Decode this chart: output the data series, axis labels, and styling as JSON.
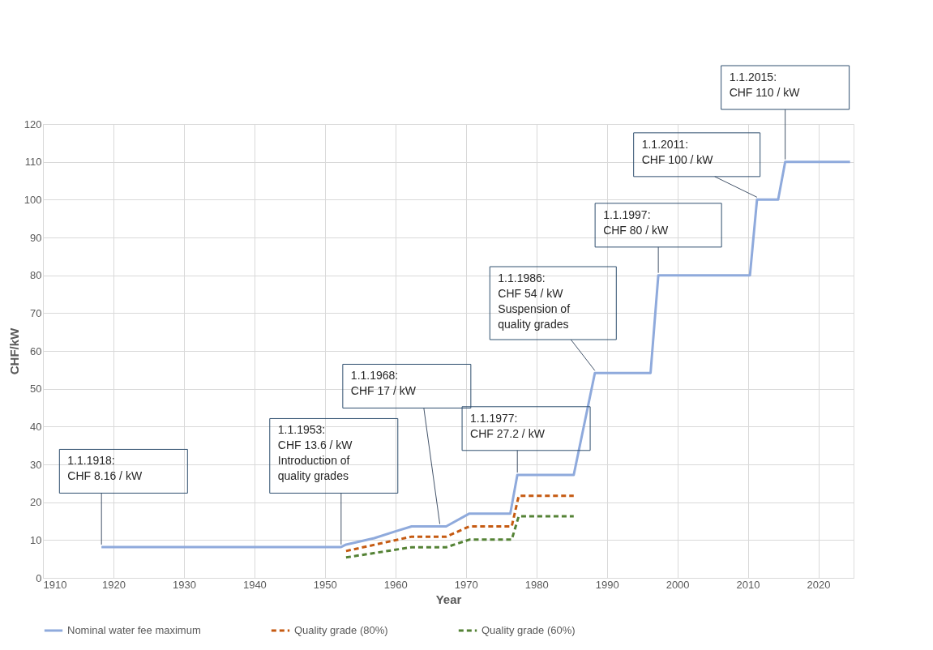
{
  "chart_data": {
    "type": "line",
    "xlabel": "Year",
    "ylabel": "CHF/kW",
    "xlim": [
      1910,
      2025
    ],
    "xticks": [
      1910,
      1920,
      1930,
      1940,
      1950,
      1960,
      1970,
      1980,
      1990,
      2000,
      2010,
      2020
    ],
    "ylim": [
      0,
      120
    ],
    "yticks": [
      0,
      10,
      20,
      30,
      40,
      50,
      60,
      70,
      80,
      90,
      100,
      110,
      120
    ],
    "grid": true,
    "legend": "bottom",
    "marker": "none",
    "series": [
      {
        "name": "Nominal water fee maximum",
        "color": "#8faadc",
        "line_style": "solid",
        "x": [
          1918.3,
          1952.3,
          1953,
          1957,
          1960,
          1962.3,
          1967.2,
          1970.5,
          1976.3,
          1977.3,
          1985.3,
          1988.3,
          1996.2,
          1997.3,
          2010.3,
          2011.3,
          2014.3,
          2015.3,
          2024.5
        ],
        "values": [
          8.16,
          8.16,
          8.8,
          10.5,
          12.3,
          13.6,
          13.6,
          17,
          17,
          27.2,
          27.2,
          54.16,
          54.16,
          80,
          80,
          100,
          100,
          110,
          110
        ]
      },
      {
        "name": "Quality grade (80%)",
        "color": "#c55a11",
        "line_style": "dashed",
        "x": [
          1953,
          1962.3,
          1967.2,
          1970.5,
          1976.5,
          1977.5,
          1985.3
        ],
        "values": [
          7.1,
          10.9,
          10.9,
          13.6,
          13.6,
          21.7,
          21.7
        ]
      },
      {
        "name": "Quality grade (60%)",
        "color": "#548235",
        "line_style": "dashed",
        "x": [
          1953,
          1962.3,
          1967.2,
          1970.5,
          1976.5,
          1977.5,
          1985.3
        ],
        "values": [
          5.4,
          8.1,
          8.1,
          10.1,
          10.1,
          16.3,
          16.3
        ]
      }
    ],
    "annotations": [
      {
        "text": "1.1.1918:\nCHF 8.16 / kW",
        "x": 1918.3,
        "y": 8.16
      },
      {
        "text": "1.1.1953:\nCHF 13.6 / kW\nIntroduction of\nquality grades",
        "x": 1952.3,
        "y": 8.16
      },
      {
        "text": "1.1.1968:\nCHF 17 / kW",
        "x": 1966.3,
        "y": 13.6
      },
      {
        "text": "1.1.1977:\nCHF 27.2 / kW",
        "x": 1977.3,
        "y": 27.2
      },
      {
        "text": "1.1.1986:\nCHF 54 / kW\nSuspension of\nquality grades",
        "x": 1988.3,
        "y": 54.16
      },
      {
        "text": "1.1.1997:\nCHF 80 / kW",
        "x": 1997.3,
        "y": 80
      },
      {
        "text": "1.1.2011:\nCHF 100 / kW",
        "x": 2011.3,
        "y": 100
      },
      {
        "text": "1.1.2015:\nCHF 110 / kW",
        "x": 2015.3,
        "y": 110
      }
    ]
  }
}
